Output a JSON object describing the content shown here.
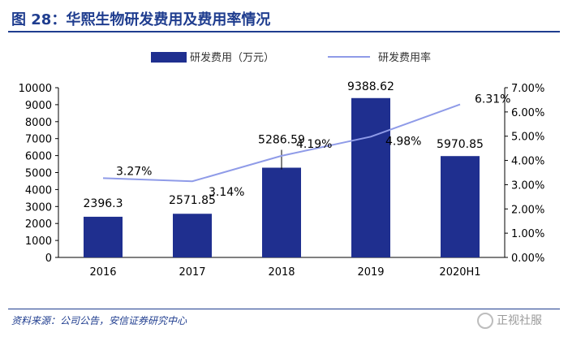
{
  "header": {
    "title": "图 28：华熙生物研发费用及费用率情况"
  },
  "footer": {
    "source": "资料来源：公司公告，安信证券研究中心",
    "watermark": "正视社服"
  },
  "colors": {
    "bar": "#1f2f8f",
    "line": "#8f9be8",
    "title": "#1f3d8f"
  },
  "chart_data": {
    "type": "bar",
    "title": "华熙生物研发费用及费用率情况",
    "categories": [
      "2016",
      "2017",
      "2018",
      "2019",
      "2020H1"
    ],
    "series": [
      {
        "name": "研发费用（万元）",
        "type": "bar",
        "axis": "left",
        "values": [
          2396.3,
          2571.85,
          5286.59,
          9388.62,
          5970.85
        ],
        "labels": [
          "2396.3",
          "2571.85",
          "5286.59",
          "9388.62",
          "5970.85"
        ]
      },
      {
        "name": "研发费用率",
        "type": "line",
        "axis": "right",
        "values": [
          3.27,
          3.14,
          4.19,
          4.98,
          6.31
        ],
        "labels": [
          "3.27%",
          "3.14%",
          "4.19%",
          "4.98%",
          "6.31%"
        ]
      }
    ],
    "y_left": {
      "min": 0,
      "max": 10000,
      "step": 1000,
      "ticks": [
        "0",
        "1000",
        "2000",
        "3000",
        "4000",
        "5000",
        "6000",
        "7000",
        "8000",
        "9000",
        "10000"
      ]
    },
    "y_right": {
      "min": 0,
      "max": 7,
      "step": 1,
      "ticks": [
        "0.00%",
        "1.00%",
        "2.00%",
        "3.00%",
        "4.00%",
        "5.00%",
        "6.00%",
        "7.00%"
      ]
    },
    "legend": {
      "position": "top",
      "entries": [
        "研发费用（万元）",
        "研发费用率"
      ]
    }
  }
}
